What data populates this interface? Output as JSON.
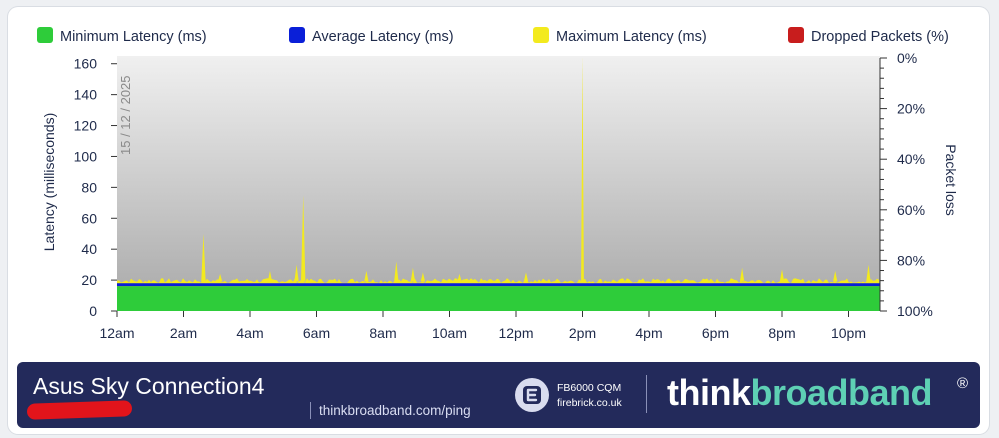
{
  "legend": [
    {
      "label": "Minimum Latency (ms)",
      "color": "#2ecc3a"
    },
    {
      "label": "Average Latency (ms)",
      "color": "#0a1fd8"
    },
    {
      "label": "Maximum Latency (ms)",
      "color": "#f3ea1e"
    },
    {
      "label": "Dropped Packets (%)",
      "color": "#c81d1d"
    }
  ],
  "chart_data": {
    "type": "area",
    "date_label": "15 / 12 / 2025",
    "ylabel": "Latency  (milliseconds)",
    "y2label": "Packet loss",
    "x_ticks": [
      "12am",
      "2am",
      "4am",
      "6am",
      "8am",
      "10am",
      "12pm",
      "2pm",
      "4pm",
      "6pm",
      "8pm",
      "10pm"
    ],
    "y_ticks": [
      "0",
      "20",
      "40",
      "60",
      "80",
      "100",
      "120",
      "140",
      "160"
    ],
    "y2_ticks": [
      "0%",
      "20%",
      "40%",
      "60%",
      "80%",
      "100%"
    ],
    "ylim": [
      0,
      165
    ],
    "xlim_hours": [
      0,
      23
    ],
    "grid": false,
    "legend_position": "top",
    "series": [
      {
        "name": "Minimum Latency (ms)",
        "color": "#2ecc3a",
        "constant_ms": 16
      },
      {
        "name": "Average Latency (ms)",
        "color": "#0a1fd8",
        "constant_ms": 17
      },
      {
        "name": "Maximum Latency (ms)",
        "color": "#f3ea1e",
        "baseline_ms": 19,
        "peaks": [
          {
            "hour": 2.6,
            "ms": 50
          },
          {
            "hour": 3.1,
            "ms": 24
          },
          {
            "hour": 4.6,
            "ms": 26
          },
          {
            "hour": 5.4,
            "ms": 30
          },
          {
            "hour": 5.6,
            "ms": 75
          },
          {
            "hour": 7.5,
            "ms": 26
          },
          {
            "hour": 8.4,
            "ms": 32
          },
          {
            "hour": 8.9,
            "ms": 28
          },
          {
            "hour": 9.2,
            "ms": 25
          },
          {
            "hour": 10.3,
            "ms": 24
          },
          {
            "hour": 12.3,
            "ms": 25
          },
          {
            "hour": 14.0,
            "ms": 165
          },
          {
            "hour": 18.8,
            "ms": 28
          },
          {
            "hour": 20.0,
            "ms": 27
          },
          {
            "hour": 21.6,
            "ms": 26
          },
          {
            "hour": 22.6,
            "ms": 30
          }
        ]
      },
      {
        "name": "Dropped Packets (%)",
        "color": "#c81d1d",
        "values_pct": [
          0
        ]
      }
    ]
  },
  "footer": {
    "connection_name": "Asus Sky Connection4",
    "url": "thinkbroadband.com/ping",
    "monitor_model": "FB6000 CQM",
    "monitor_site": "firebrick.co.uk",
    "brand_think": "think",
    "brand_broadband": "broadband",
    "registered": "®"
  }
}
